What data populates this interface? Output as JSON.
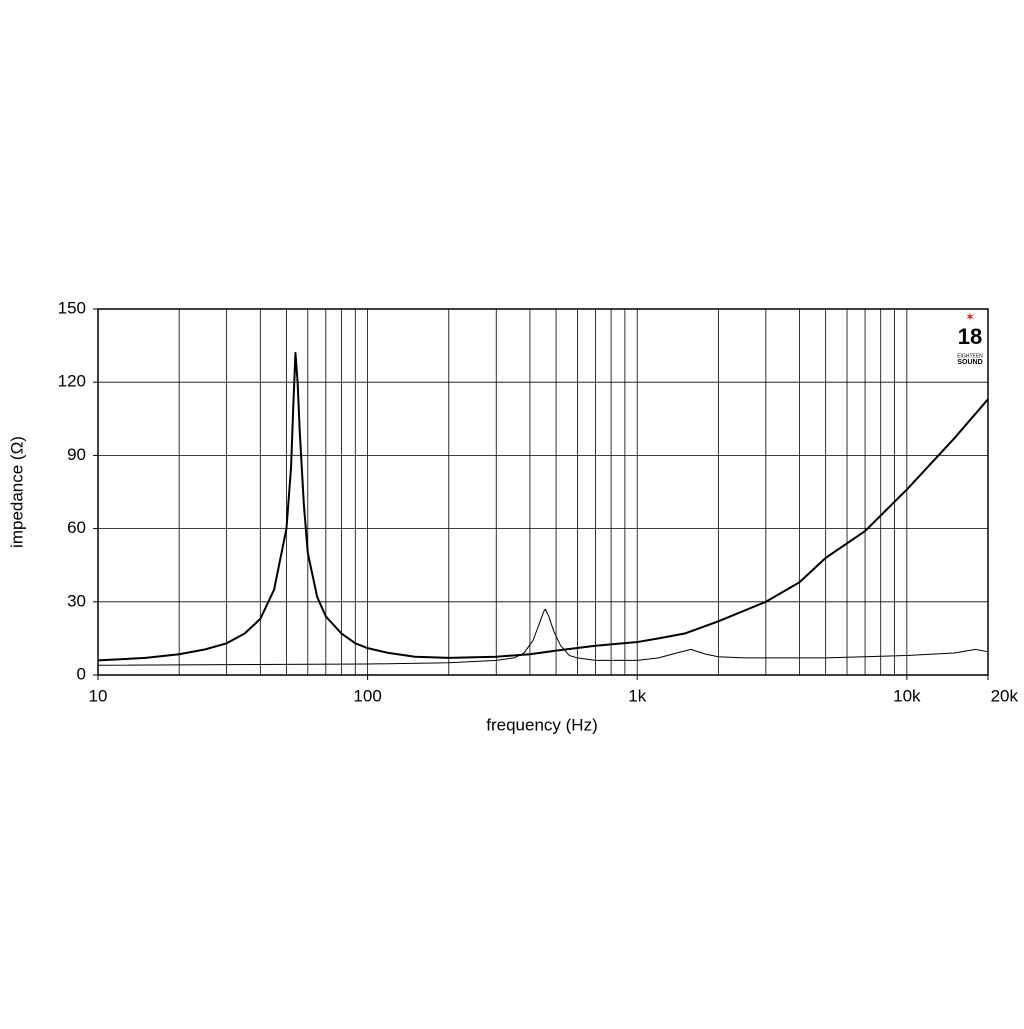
{
  "chart_data": {
    "type": "line",
    "xlabel": "frequency (Hz)",
    "ylabel": "impedance (Ω)",
    "xlog": true,
    "grid": true,
    "minor_grid": true,
    "xlim": [
      10,
      20000
    ],
    "ylim": [
      0,
      150
    ],
    "xticks": [
      10,
      100,
      {
        "value": 1000,
        "label": "1k"
      },
      {
        "value": 10000,
        "label": "10k"
      },
      {
        "value": 20000,
        "label": "20k"
      }
    ],
    "yticks": [
      0,
      30,
      60,
      90,
      120,
      150
    ],
    "series": [
      {
        "color": "#000000",
        "width": 2,
        "x": [
          10,
          15,
          20,
          25,
          30,
          35,
          40,
          45,
          50,
          52,
          53,
          54,
          55,
          56,
          58,
          60,
          65,
          70,
          80,
          90,
          100,
          120,
          150,
          200,
          300,
          400,
          500,
          700,
          1000,
          1200,
          1500,
          2000,
          3000,
          4000,
          5000,
          7000,
          10000,
          15000,
          20000
        ],
        "values": [
          6,
          7,
          8.5,
          10.5,
          13,
          17,
          23,
          35,
          60,
          85,
          110,
          132,
          120,
          100,
          70,
          50,
          32,
          24,
          17,
          13,
          11,
          9,
          7.5,
          7,
          7.5,
          8.5,
          10,
          12,
          13.5,
          15,
          17,
          22,
          30,
          38,
          48,
          59,
          76,
          97,
          113
        ]
      },
      {
        "color": "#000000",
        "width": 1,
        "x": [
          10,
          100,
          200,
          300,
          350,
          380,
          410,
          430,
          450,
          456,
          470,
          490,
          520,
          560,
          600,
          700,
          1000,
          1200,
          1400,
          1580,
          1800,
          2000,
          2500,
          3000,
          5000,
          10000,
          15000,
          18000,
          20000
        ],
        "values": [
          4,
          4.5,
          5,
          6,
          7,
          9,
          14,
          20,
          26,
          27,
          24,
          18,
          12,
          8,
          7,
          6,
          6,
          7,
          9,
          10.5,
          8.5,
          7.5,
          7,
          7,
          7,
          8,
          9,
          10.5,
          9.5
        ]
      }
    ],
    "logo_text": [
      "18",
      "EIGHTEEN",
      "SOUND"
    ]
  }
}
